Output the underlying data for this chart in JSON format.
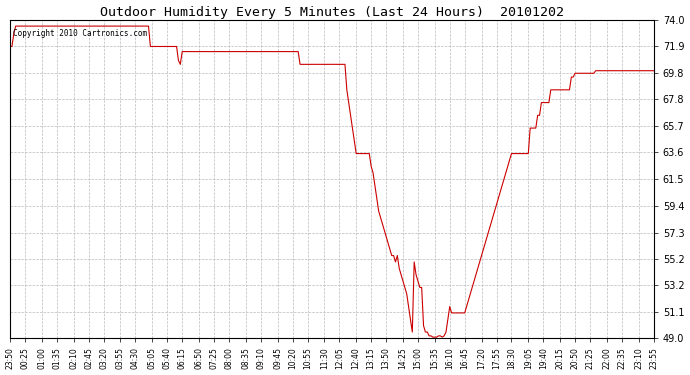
{
  "title": "Outdoor Humidity Every 5 Minutes (Last 24 Hours)  20101202",
  "copyright": "Copyright 2010 Cartronics.com",
  "line_color": "#cc0000",
  "bg_color": "#ffffff",
  "grid_color": "#bbbbbb",
  "ylim": [
    49.0,
    74.0
  ],
  "yticks": [
    49.0,
    51.1,
    53.2,
    55.2,
    57.3,
    59.4,
    61.5,
    63.6,
    65.7,
    67.8,
    69.8,
    71.9,
    74.0
  ],
  "xtick_labels": [
    "23:50",
    "00:25",
    "01:00",
    "01:35",
    "02:10",
    "02:45",
    "03:20",
    "03:55",
    "04:30",
    "05:05",
    "05:40",
    "06:15",
    "06:50",
    "07:25",
    "08:00",
    "08:35",
    "09:10",
    "09:45",
    "10:20",
    "10:55",
    "11:30",
    "12:05",
    "12:40",
    "13:15",
    "13:50",
    "14:25",
    "15:00",
    "15:35",
    "16:10",
    "16:45",
    "17:20",
    "17:55",
    "18:30",
    "19:05",
    "19:40",
    "20:15",
    "20:50",
    "21:25",
    "22:00",
    "22:35",
    "23:10",
    "23:55"
  ],
  "y_values": [
    71.9,
    71.9,
    72.9,
    73.5,
    73.5,
    73.5,
    73.5,
    73.5,
    73.5,
    73.5,
    73.5,
    73.5,
    73.5,
    73.5,
    73.5,
    73.5,
    73.5,
    73.5,
    73.5,
    73.5,
    73.5,
    73.5,
    73.5,
    73.5,
    73.5,
    73.5,
    73.5,
    73.5,
    73.5,
    73.5,
    73.5,
    73.5,
    73.5,
    73.5,
    73.5,
    73.5,
    73.5,
    73.5,
    73.5,
    73.5,
    73.5,
    73.5,
    73.5,
    73.5,
    73.5,
    73.5,
    73.5,
    73.5,
    73.5,
    73.5,
    73.5,
    73.5,
    73.5,
    73.5,
    73.5,
    73.5,
    73.5,
    73.5,
    73.5,
    73.5,
    73.5,
    73.5,
    73.5,
    73.5,
    73.5,
    73.5,
    73.5,
    73.5,
    73.5,
    73.5,
    73.5,
    73.5,
    73.5,
    73.5,
    73.5,
    71.9,
    71.9,
    71.9,
    71.9,
    71.9,
    71.9,
    71.9,
    71.9,
    71.9,
    71.9,
    71.9,
    71.9,
    71.9,
    71.9,
    71.9,
    70.8,
    70.5,
    71.5,
    71.5,
    71.5,
    71.5,
    71.5,
    71.5,
    71.5,
    71.5,
    71.5,
    71.5,
    71.5,
    71.5,
    71.5,
    71.5,
    71.5,
    71.5,
    71.5,
    71.5,
    71.5,
    71.5,
    71.5,
    71.5,
    71.5,
    71.5,
    71.5,
    71.5,
    71.5,
    71.5,
    71.5,
    71.5,
    71.5,
    71.5,
    71.5,
    71.5,
    71.5,
    71.5,
    71.5,
    71.5,
    71.5,
    71.5,
    71.5,
    71.5,
    71.5,
    71.5,
    71.5,
    71.5,
    71.5,
    71.5,
    71.5,
    71.5,
    71.5,
    71.5,
    71.5,
    71.5,
    71.5,
    71.5,
    71.5,
    71.5,
    71.5,
    71.5,
    71.5,
    71.5,
    71.5,
    70.5,
    70.5,
    70.5,
    70.5,
    70.5,
    70.5,
    70.5,
    70.5,
    70.5,
    70.5,
    70.5,
    70.5,
    70.5,
    70.5,
    70.5,
    70.5,
    70.5,
    70.5,
    70.5,
    70.5,
    70.5,
    70.5,
    70.5,
    70.5,
    70.5,
    68.5,
    67.5,
    66.5,
    65.5,
    64.5,
    63.5,
    63.5,
    63.5,
    63.5,
    63.5,
    63.5,
    63.5,
    63.5,
    62.5,
    62.0,
    61.0,
    60.0,
    59.0,
    58.5,
    58.0,
    57.5,
    57.0,
    56.5,
    56.0,
    55.5,
    55.5,
    55.0,
    55.5,
    54.5,
    54.0,
    53.5,
    53.0,
    52.5,
    51.5,
    50.5,
    49.5,
    55.0,
    54.0,
    53.5,
    53.0,
    53.0,
    50.0,
    49.5,
    49.5,
    49.2,
    49.2,
    49.1,
    49.1,
    49.1,
    49.2,
    49.2,
    49.1,
    49.2,
    49.5,
    50.5,
    51.5,
    51.0,
    51.0,
    51.0,
    51.0,
    51.0,
    51.0,
    51.0,
    51.0,
    51.5,
    52.0,
    52.5,
    53.0,
    53.5,
    54.0,
    54.5,
    55.0,
    55.5,
    56.0,
    56.5,
    57.0,
    57.5,
    58.0,
    58.5,
    59.0,
    59.5,
    60.0,
    60.5,
    61.0,
    61.5,
    62.0,
    62.5,
    63.0,
    63.5,
    63.5,
    63.5,
    63.5,
    63.5,
    63.5,
    63.5,
    63.5,
    63.5,
    63.5,
    65.5,
    65.5,
    65.5,
    65.5,
    66.5,
    66.5,
    67.5,
    67.5,
    67.5,
    67.5,
    67.5,
    68.5,
    68.5,
    68.5,
    68.5,
    68.5,
    68.5,
    68.5,
    68.5,
    68.5,
    68.5,
    68.5,
    69.5,
    69.5,
    69.8,
    69.8,
    69.8,
    69.8,
    69.8,
    69.8,
    69.8,
    69.8,
    69.8,
    69.8,
    69.8,
    70.0,
    70.0,
    70.0,
    70.0,
    70.0,
    70.0,
    70.0,
    70.0,
    70.0,
    70.0,
    70.0,
    70.0,
    70.0,
    70.0,
    70.0,
    70.0,
    70.0,
    70.0,
    70.0,
    70.0,
    70.0,
    70.0,
    70.0,
    70.0,
    70.0,
    70.0,
    70.0,
    70.0,
    70.0,
    70.0,
    70.0,
    70.0
  ]
}
